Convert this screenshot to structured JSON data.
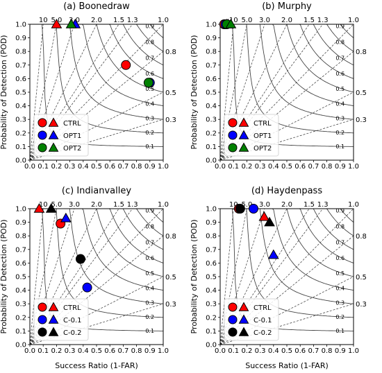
{
  "figure": {
    "ylabel": "Probability of Detection (POD)",
    "xlabel": "Success Ratio (1-FAR)"
  },
  "diagram_reference": {
    "bias_labels_top": [
      "10",
      "5.0",
      "3.0",
      "2.0",
      "1.5",
      "1.3",
      "1.0"
    ],
    "bias_labels_right": [
      "0.8",
      "0.5",
      "0.3"
    ],
    "csi_labels": [
      "0.9",
      "0.8",
      "0.7",
      "0.6",
      "0.5",
      "0.4",
      "0.3",
      "0.2",
      "0.1"
    ],
    "bias_lines": [
      10,
      5.0,
      3.0,
      2.0,
      1.5,
      1.3,
      1.0,
      0.8,
      0.5,
      0.3
    ],
    "csi_curves": [
      0.1,
      0.2,
      0.3,
      0.4,
      0.5,
      0.6,
      0.7,
      0.8,
      0.9
    ]
  },
  "colors": {
    "red": "#ff0000",
    "blue": "#0000ff",
    "green": "#008000",
    "black": "#000000"
  },
  "chart_data": [
    {
      "type": "scatter",
      "title": "(a) Boonedraw",
      "xlim": [
        0,
        1
      ],
      "ylim": [
        0,
        1
      ],
      "x_ticks": [
        "0.0",
        "0.1",
        "0.2",
        "0.3",
        "0.4",
        "0.5",
        "0.6",
        "0.7",
        "0.8",
        "0.9",
        "1.0"
      ],
      "y_ticks": [
        "0.0",
        "0.1",
        "0.2",
        "0.3",
        "0.4",
        "0.5",
        "0.6",
        "0.7",
        "0.8",
        "0.9",
        "1.0"
      ],
      "show_xlabel": false,
      "legend": {
        "placement": "lower-left",
        "entries": [
          {
            "name": "CTRL",
            "color": "red"
          },
          {
            "name": "OPT1",
            "color": "blue"
          },
          {
            "name": "OPT2",
            "color": "green"
          }
        ]
      },
      "series": [
        {
          "name": "CTRL",
          "color": "red",
          "marker": "circle",
          "points": [
            [
              0.72,
              0.7
            ]
          ]
        },
        {
          "name": "CTRL",
          "color": "red",
          "marker": "triangle",
          "points": [
            [
              0.2,
              1.0
            ]
          ]
        },
        {
          "name": "OPT1",
          "color": "blue",
          "marker": "circle",
          "points": [
            [
              0.9,
              0.57
            ]
          ]
        },
        {
          "name": "OPT1",
          "color": "blue",
          "marker": "triangle",
          "points": [
            [
              0.34,
              1.0
            ]
          ]
        },
        {
          "name": "OPT2",
          "color": "green",
          "marker": "circle",
          "points": [
            [
              0.89,
              0.57
            ]
          ]
        },
        {
          "name": "OPT2",
          "color": "green",
          "marker": "triangle",
          "points": [
            [
              0.31,
              1.0
            ]
          ]
        }
      ]
    },
    {
      "type": "scatter",
      "title": "(b) Murphy",
      "xlim": [
        0,
        1
      ],
      "ylim": [
        0,
        1
      ],
      "x_ticks": [
        "0.0",
        "0.1",
        "0.2",
        "0.3",
        "0.4",
        "0.5",
        "0.6",
        "0.7",
        "0.8",
        "0.9",
        "1.0"
      ],
      "y_ticks": [
        "0.0",
        "0.1",
        "0.2",
        "0.3",
        "0.4",
        "0.5",
        "0.6",
        "0.7",
        "0.8",
        "0.9",
        "1.0"
      ],
      "show_xlabel": false,
      "legend": {
        "placement": "lower-left",
        "entries": [
          {
            "name": "CTRL",
            "color": "red"
          },
          {
            "name": "OPT1",
            "color": "blue"
          },
          {
            "name": "OPT2",
            "color": "green"
          }
        ]
      },
      "series": [
        {
          "name": "CTRL",
          "color": "red",
          "marker": "circle",
          "points": [
            [
              0.03,
              1.0
            ]
          ]
        },
        {
          "name": "CTRL",
          "color": "red",
          "marker": "triangle",
          "points": [
            [
              0.05,
              1.0
            ]
          ]
        },
        {
          "name": "OPT1",
          "color": "blue",
          "marker": "circle",
          "points": [
            [
              0.04,
              1.0
            ]
          ]
        },
        {
          "name": "OPT1",
          "color": "blue",
          "marker": "triangle",
          "points": [
            [
              0.06,
              1.0
            ]
          ]
        },
        {
          "name": "OPT2",
          "color": "green",
          "marker": "circle",
          "points": [
            [
              0.05,
              1.0
            ]
          ]
        },
        {
          "name": "OPT2",
          "color": "green",
          "marker": "triangle",
          "points": [
            [
              0.08,
              1.0
            ]
          ]
        }
      ]
    },
    {
      "type": "scatter",
      "title": "(c) Indianvalley",
      "xlim": [
        0,
        1
      ],
      "ylim": [
        0,
        1
      ],
      "x_ticks": [
        "0.0",
        "0.1",
        "0.2",
        "0.3",
        "0.4",
        "0.5",
        "0.6",
        "0.7",
        "0.8",
        "0.9",
        "1.0"
      ],
      "y_ticks": [
        "0.0",
        "0.1",
        "0.2",
        "0.3",
        "0.4",
        "0.5",
        "0.6",
        "0.7",
        "0.8",
        "0.9",
        "1.0"
      ],
      "show_xlabel": true,
      "legend": {
        "placement": "lower-left",
        "entries": [
          {
            "name": "CTRL",
            "color": "red"
          },
          {
            "name": "C-0.1",
            "color": "blue"
          },
          {
            "name": "C-0.2",
            "color": "black"
          }
        ]
      },
      "series": [
        {
          "name": "CTRL",
          "color": "red",
          "marker": "circle",
          "points": [
            [
              0.23,
              0.89
            ]
          ]
        },
        {
          "name": "CTRL",
          "color": "red",
          "marker": "triangle",
          "points": [
            [
              0.07,
              1.0
            ]
          ]
        },
        {
          "name": "C-0.1",
          "color": "blue",
          "marker": "circle",
          "points": [
            [
              0.43,
              0.42
            ]
          ]
        },
        {
          "name": "C-0.1",
          "color": "blue",
          "marker": "triangle",
          "points": [
            [
              0.27,
              0.93
            ]
          ]
        },
        {
          "name": "C-0.2",
          "color": "black",
          "marker": "circle",
          "points": [
            [
              0.38,
              0.63
            ]
          ]
        },
        {
          "name": "C-0.2",
          "color": "black",
          "marker": "triangle",
          "points": [
            [
              0.16,
              1.0
            ]
          ]
        }
      ]
    },
    {
      "type": "scatter",
      "title": "(d) Haydenpass",
      "xlim": [
        0,
        1
      ],
      "ylim": [
        0,
        1
      ],
      "x_ticks": [
        "0.0",
        "0.1",
        "0.2",
        "0.3",
        "0.4",
        "0.5",
        "0.6",
        "0.7",
        "0.8",
        "0.9",
        "1.0"
      ],
      "y_ticks": [
        "0.0",
        "0.1",
        "0.2",
        "0.3",
        "0.4",
        "0.5",
        "0.6",
        "0.7",
        "0.8",
        "0.9",
        "1.0"
      ],
      "show_xlabel": true,
      "legend": {
        "placement": "lower-left",
        "entries": [
          {
            "name": "CTRL",
            "color": "red"
          },
          {
            "name": "C-0.1",
            "color": "blue"
          },
          {
            "name": "C-0.2",
            "color": "black"
          }
        ]
      },
      "series": [
        {
          "name": "CTRL",
          "color": "red",
          "marker": "circle",
          "points": [
            [
              0.14,
              1.0
            ]
          ]
        },
        {
          "name": "CTRL",
          "color": "red",
          "marker": "triangle",
          "points": [
            [
              0.33,
              0.94
            ]
          ]
        },
        {
          "name": "C-0.1",
          "color": "blue",
          "marker": "circle",
          "points": [
            [
              0.25,
              1.0
            ]
          ]
        },
        {
          "name": "C-0.1",
          "color": "blue",
          "marker": "triangle",
          "points": [
            [
              0.4,
              0.66
            ]
          ]
        },
        {
          "name": "C-0.2",
          "color": "black",
          "marker": "circle",
          "points": [
            [
              0.15,
              1.0
            ]
          ]
        },
        {
          "name": "C-0.2",
          "color": "black",
          "marker": "triangle",
          "points": [
            [
              0.37,
              0.9
            ]
          ]
        }
      ]
    }
  ]
}
